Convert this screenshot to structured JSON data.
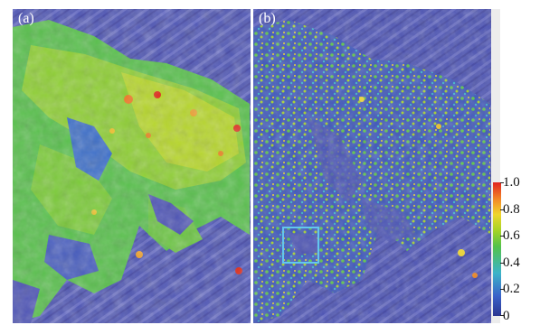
{
  "panels": [
    {
      "label": "(a)"
    },
    {
      "label": "(b)"
    }
  ],
  "colorbar": {
    "ticks": [
      "1.0",
      "0.8",
      "0.6",
      "0.4",
      "0.2",
      "0"
    ],
    "colors": [
      "#2b3590",
      "#3a62c9",
      "#3cb3c9",
      "#53c24a",
      "#a6d326",
      "#efd52c",
      "#f38a27",
      "#e0231f"
    ]
  }
}
